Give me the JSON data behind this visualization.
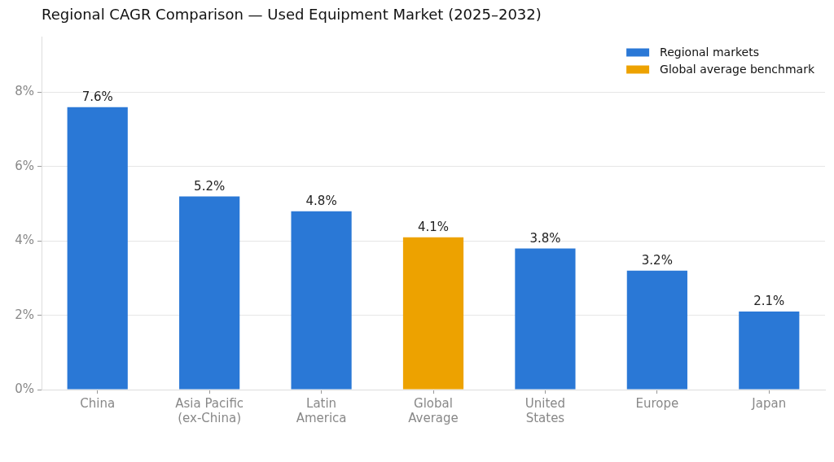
{
  "chart_data": {
    "type": "bar",
    "title": "Regional CAGR Comparison — Used Equipment Market (2025–2032)",
    "categories": [
      "China",
      "Asia Pacific\n(ex-China)",
      "Latin\nAmerica",
      "Global\nAverage",
      "United\nStates",
      "Europe",
      "Japan"
    ],
    "series": [
      {
        "name": "Regional markets",
        "color": "#2a78d6",
        "values": [
          7.6,
          5.2,
          4.8,
          null,
          3.8,
          3.2,
          2.1
        ],
        "value_labels": [
          "7.6%",
          "5.2%",
          "4.8%",
          null,
          "3.8%",
          "3.2%",
          "2.1%"
        ]
      },
      {
        "name": "Global average benchmark",
        "color": "#eda200",
        "values": [
          null,
          null,
          null,
          4.1,
          null,
          null,
          null
        ],
        "value_labels": [
          null,
          null,
          null,
          "4.1%",
          null,
          null,
          null
        ]
      }
    ],
    "ylim": [
      0,
      9.5
    ],
    "yticks": [
      {
        "value": 0,
        "label": "0%"
      },
      {
        "value": 2,
        "label": "2%"
      },
      {
        "value": 4,
        "label": "4%"
      },
      {
        "value": 6,
        "label": "6%"
      },
      {
        "value": 8,
        "label": "8%"
      }
    ],
    "grid": "y",
    "legend": "top right"
  }
}
